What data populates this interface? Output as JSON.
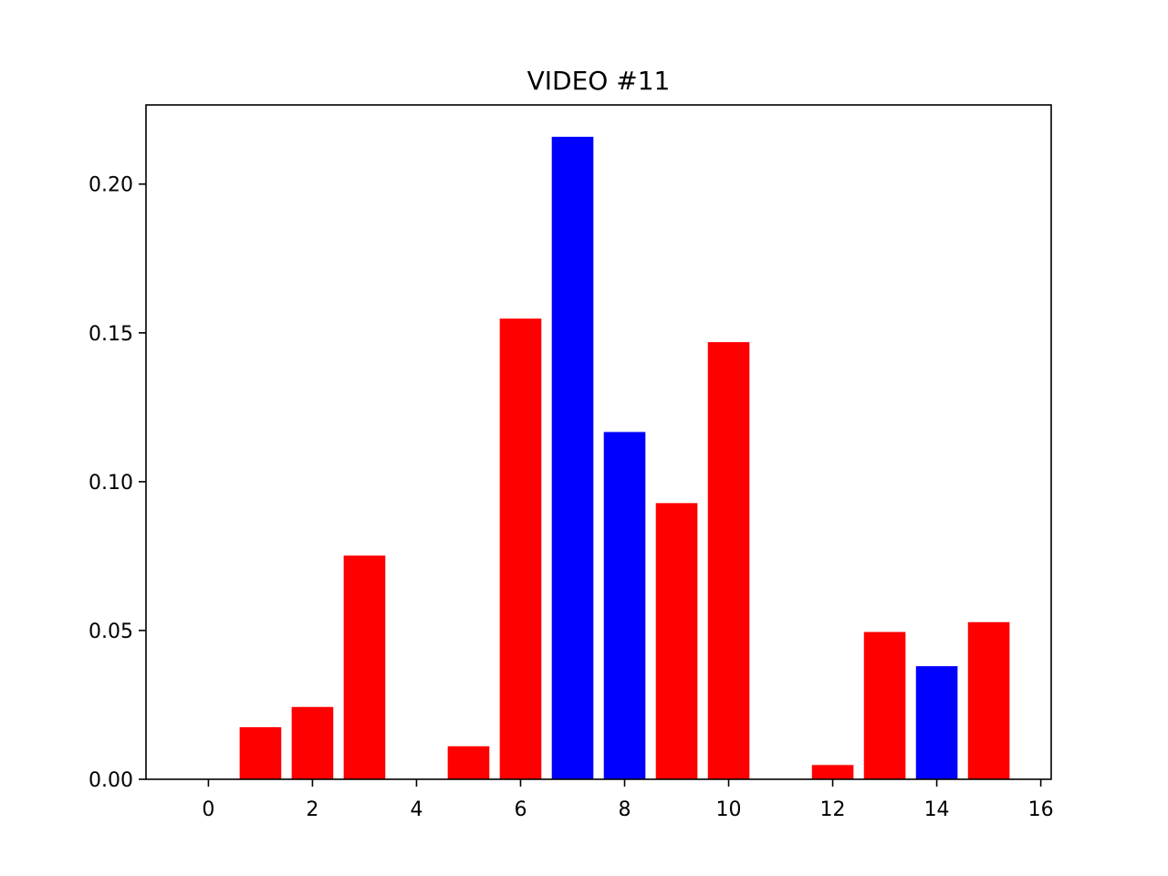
{
  "chart_data": {
    "type": "bar",
    "title": "VIDEO #11",
    "xlabel": "",
    "ylabel": "",
    "x": [
      0,
      1,
      2,
      3,
      4,
      5,
      6,
      7,
      8,
      9,
      10,
      11,
      12,
      13,
      14,
      15
    ],
    "values": [
      0.0,
      0.0175,
      0.0243,
      0.0752,
      0.0,
      0.0111,
      0.1548,
      0.2159,
      0.1167,
      0.0928,
      0.1469,
      0.0,
      0.0048,
      0.0495,
      0.038,
      0.0528
    ],
    "bar_colors": [
      "#ff0000",
      "#ff0000",
      "#ff0000",
      "#ff0000",
      "#ff0000",
      "#ff0000",
      "#ff0000",
      "#0000ff",
      "#0000ff",
      "#ff0000",
      "#ff0000",
      "#ff0000",
      "#ff0000",
      "#ff0000",
      "#0000ff",
      "#ff0000"
    ],
    "xlim": [
      -1.2,
      16.2
    ],
    "ylim": [
      0.0,
      0.2266
    ],
    "xticks": [
      0,
      2,
      4,
      6,
      8,
      10,
      12,
      14,
      16
    ],
    "xtick_labels": [
      "0",
      "2",
      "4",
      "6",
      "8",
      "10",
      "12",
      "14",
      "16"
    ],
    "yticks": [
      0.0,
      0.05,
      0.1,
      0.15,
      0.2
    ],
    "ytick_labels": [
      "0.00",
      "0.05",
      "0.10",
      "0.15",
      "0.20"
    ],
    "grid": false,
    "legend": "none"
  }
}
